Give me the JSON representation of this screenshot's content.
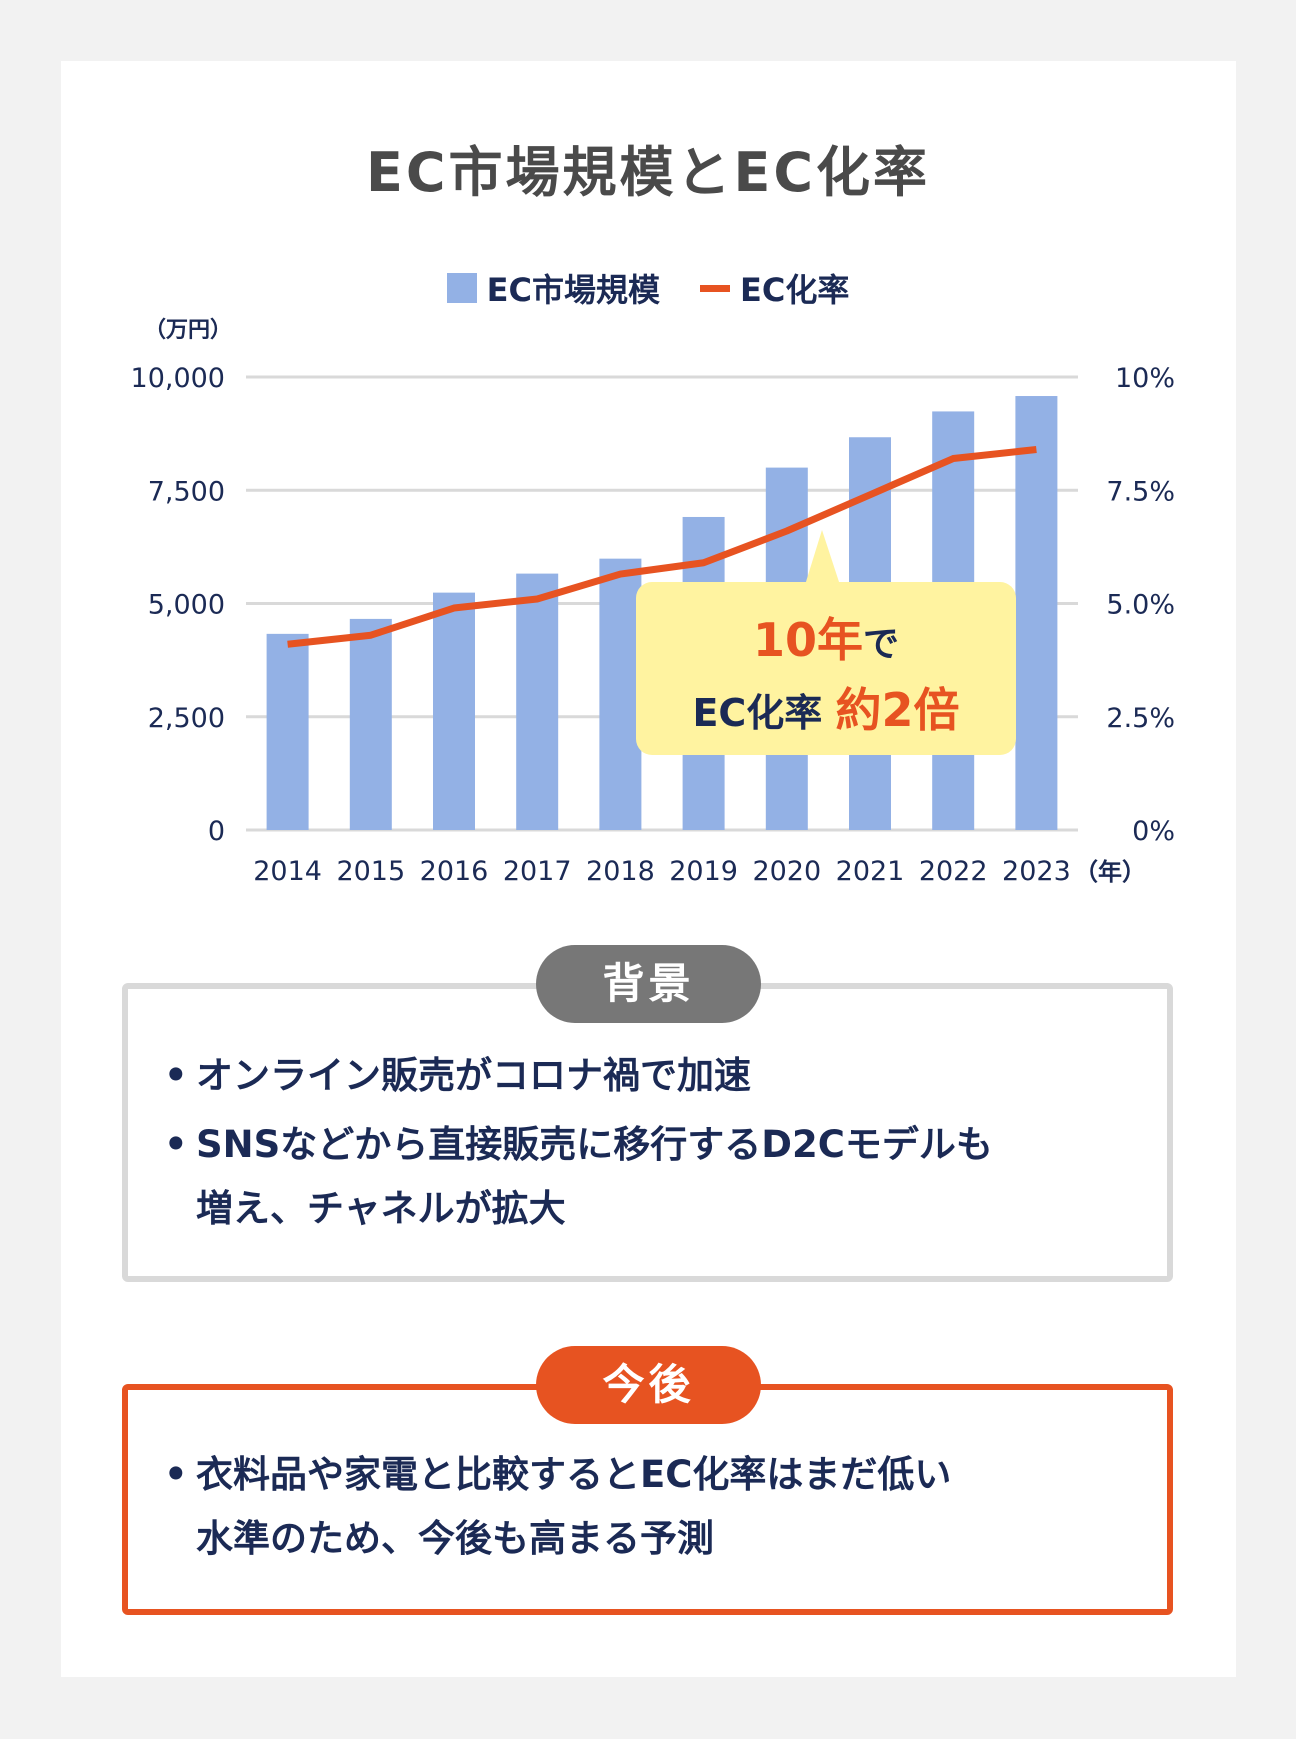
{
  "chart_data": {
    "type": "bar+line",
    "title": "EC市場規模とEC化率",
    "categories": [
      "2014",
      "2015",
      "2016",
      "2017",
      "2018",
      "2019",
      "2020",
      "2021",
      "2022",
      "2023"
    ],
    "x_unit": "（年）",
    "series": [
      {
        "name": "EC市場規模",
        "type": "bar",
        "axis": "left",
        "color": "#93b1e5",
        "values": [
          4330,
          4660,
          5240,
          5660,
          5990,
          6910,
          8000,
          8670,
          9240,
          9580
        ]
      },
      {
        "name": "EC化率",
        "type": "line",
        "axis": "right",
        "color": "#e75321",
        "values": [
          4.1,
          4.3,
          4.9,
          5.1,
          5.65,
          5.9,
          6.6,
          7.4,
          8.2,
          8.4
        ]
      }
    ],
    "left_axis": {
      "unit": "（万円）",
      "ylim": [
        0,
        10000
      ],
      "ticks": [
        "0",
        "2,500",
        "5,000",
        "7,500",
        "10,000"
      ]
    },
    "right_axis": {
      "ylim": [
        0,
        10
      ],
      "ticks": [
        "0%",
        "2.5%",
        "5.0%",
        "7.5%",
        "10%"
      ]
    },
    "grid": true,
    "legend_position": "top-center",
    "annotation": {
      "line1_highlight": "10年",
      "line1_rest": "で",
      "line2_prefix": "EC化率",
      "line2_highlight": "約2倍"
    }
  },
  "background": {
    "label": "背景",
    "items": [
      [
        "オンライン販売がコロナ禍で加速"
      ],
      [
        "SNSなどから直接販売に移行するD2Cモデルも",
        "増え、チャネルが拡大"
      ]
    ]
  },
  "future": {
    "label": "今後",
    "items": [
      [
        "衣料品や家電と比較するとEC化率はまだ低い",
        "水準のため、今後も高まる予測"
      ]
    ]
  },
  "bullet": "•",
  "colors": {
    "accent": "#e75321",
    "bar": "#93b1e5",
    "text": "#1b2a55",
    "grey_badge": "#777777",
    "callout": "#fff3a0"
  }
}
